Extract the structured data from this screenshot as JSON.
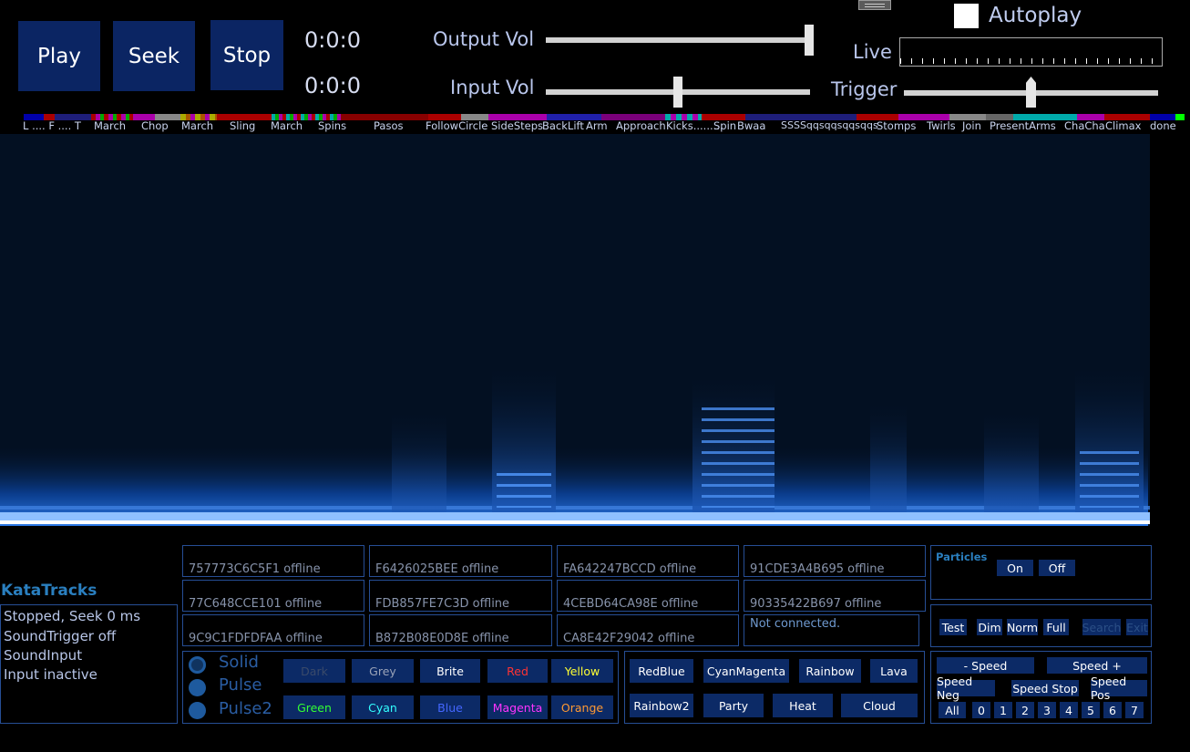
{
  "transport": {
    "play": "Play",
    "seek": "Seek",
    "stop": "Stop",
    "time1": "0:0:0",
    "time2": "0:0:0"
  },
  "volume": {
    "output_label": "Output Vol",
    "input_label": "Input Vol",
    "output_level": 1.0,
    "input_level": 0.5
  },
  "autoplay": {
    "label": "Autoplay",
    "checked": false
  },
  "live": {
    "label": "Live"
  },
  "trigger": {
    "label": "Trigger",
    "level": 0.5
  },
  "sections": [
    "L .... F .... T",
    "March",
    "Chop",
    "March",
    "Sling",
    "March",
    "Spins",
    "Pasos",
    "FollowCircle",
    "SideSteps",
    "BackLift",
    "Arm",
    "Approach",
    "Kicks.........",
    "Spin",
    "Bwaa",
    "SSSSqqsqqsqqsqqs",
    "Stomps",
    "Twirls",
    "Join",
    "PresentArms",
    "ChaCha",
    "Climax",
    "done"
  ],
  "app_title": "KataTracks",
  "status_lines": [
    "Stopped, Seek 0 ms",
    "SoundTrigger off",
    "SoundInput",
    "Input inactive"
  ],
  "devices": [
    "757773C6C5F1 offline",
    "F6426025BEE offline",
    "FA642247BCCD offline",
    "91CDE3A4B695 offline",
    "77C648CCE101 offline",
    "FDB857FE7C3D offline",
    "4CEBD64CA98E offline",
    "90335422B697 offline",
    "9C9C1FDFDFAA offline",
    "B872B08E0D8E offline",
    "CA8E42F29042 offline",
    "Not connected."
  ],
  "particles": {
    "title": "Particles",
    "on": "On",
    "off": "Off"
  },
  "modes": [
    "Test",
    "Dim",
    "Norm",
    "Full",
    "Search",
    "Exit"
  ],
  "patterns": [
    "Solid",
    "Pulse",
    "Pulse2"
  ],
  "colors_row1": [
    "Dark",
    "Grey",
    "Brite",
    "Red",
    "Yellow"
  ],
  "colors_row2": [
    "Green",
    "Cyan",
    "Blue",
    "Magenta",
    "Orange"
  ],
  "palettes": [
    "RedBlue",
    "CyanMagenta",
    "Rainbow",
    "Lava",
    "Rainbow2",
    "Party",
    "Heat",
    "Cloud"
  ],
  "speed": {
    "minus": "- Speed",
    "plus": "Speed +",
    "neg": "Speed Neg",
    "stop": "Speed Stop",
    "pos": "Speed Pos",
    "all": "All",
    "digits": [
      "0",
      "1",
      "2",
      "3",
      "4",
      "5",
      "6",
      "7"
    ]
  },
  "colors": {
    "button_bg": "#0b2563",
    "border": "#264e95",
    "accent_text": "#2a7fbf",
    "red": "#ff3333",
    "yellow": "#ffff33",
    "green": "#33ff33",
    "cyan": "#33ffff",
    "blue": "#4466ff",
    "magenta": "#ff33ff",
    "orange": "#ff9933"
  }
}
